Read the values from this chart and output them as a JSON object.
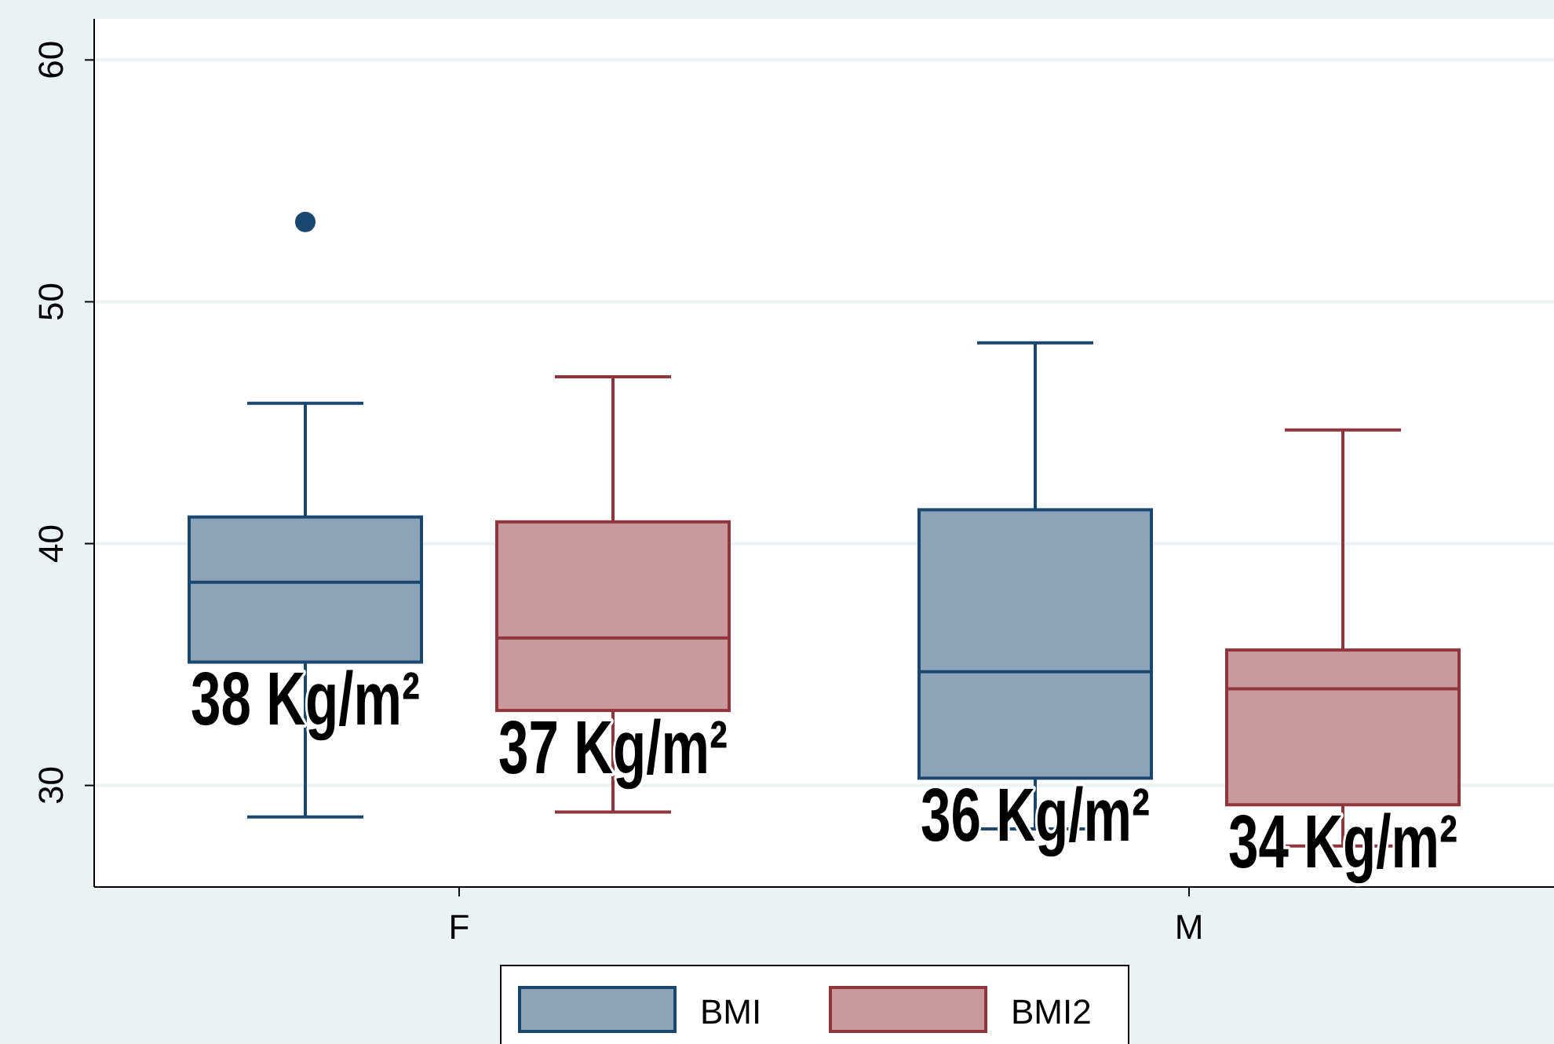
{
  "chart_data": {
    "type": "box",
    "categories": [
      "F",
      "M"
    ],
    "series": [
      {
        "name": "BMI",
        "color": "#1a476f",
        "boxes": [
          {
            "low": 28.7,
            "q1": 35.1,
            "median": 38.4,
            "q3": 41.1,
            "high": 45.8,
            "outliers": [
              53.3
            ]
          },
          {
            "low": 28.2,
            "q1": 30.3,
            "median": 34.7,
            "q3": 41.4,
            "high": 48.3
          }
        ]
      },
      {
        "name": "BMI2",
        "color": "#90353b",
        "boxes": [
          {
            "low": 28.9,
            "q1": 33.1,
            "median": 36.1,
            "q3": 40.9,
            "high": 46.9
          },
          {
            "low": 27.5,
            "q1": 29.2,
            "median": 34.0,
            "q3": 35.6,
            "high": 44.7
          }
        ]
      }
    ],
    "ylim": [
      25.8,
      61.7
    ],
    "yticks": [
      30,
      40,
      50,
      60
    ],
    "grid": "y",
    "legend": "bottom",
    "annotations": [
      "38 Kg/m²",
      "37 Kg/m²",
      "36 Kg/m²",
      "34 Kg/m²"
    ]
  }
}
